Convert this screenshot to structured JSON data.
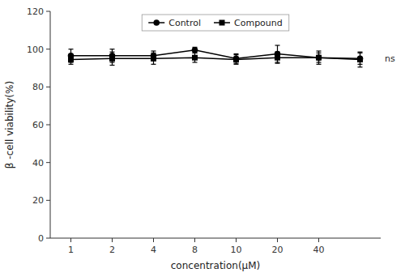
{
  "chart_data": {
    "type": "line",
    "categories": [
      "1",
      "2",
      "4",
      "8",
      "10",
      "20",
      "40",
      null
    ],
    "series": [
      {
        "name": "Control",
        "color": "#000000",
        "marker": "circle",
        "line_style": "solid",
        "values": [
          96.5,
          96.5,
          96.5,
          99.5,
          95.0,
          97.5,
          95.5,
          95.0
        ],
        "errors": [
          3.5,
          3.5,
          2.5,
          1.5,
          2.5,
          4.5,
          2.5,
          3.0
        ]
      },
      {
        "name": "Compound",
        "color": "#000000",
        "marker": "square",
        "line_style": "solid",
        "values": [
          94.5,
          95.0,
          95.0,
          95.5,
          94.5,
          95.5,
          95.5,
          94.5
        ],
        "errors": [
          2.5,
          3.5,
          3.0,
          2.5,
          2.5,
          3.0,
          3.5,
          4.0
        ]
      }
    ],
    "x_label": "concentration(μM)",
    "y_label": "β -cell viability(%)",
    "ylim": [
      0,
      120
    ],
    "yticks": [
      0,
      20,
      40,
      60,
      80,
      100,
      120
    ],
    "annotations": [
      {
        "text": "ns",
        "y": 95.0
      }
    ],
    "legend": "top",
    "grid": false
  }
}
